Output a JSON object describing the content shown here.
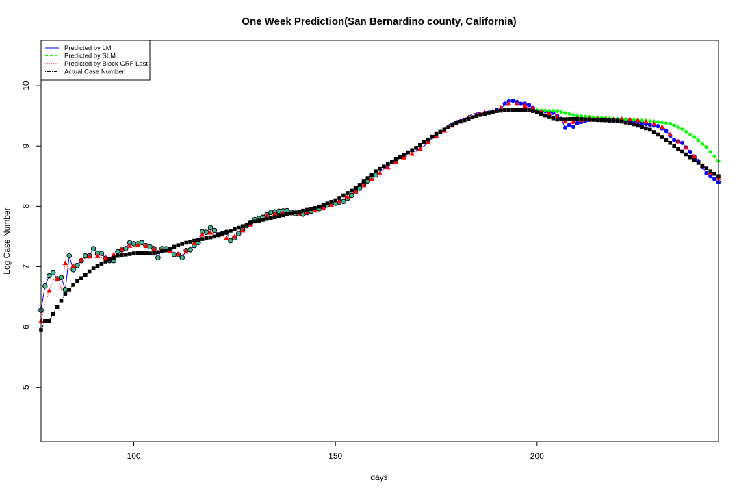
{
  "chart_data": {
    "type": "line",
    "title": "One Week Prediction(San Bernardino county, California)",
    "xlabel": "days",
    "ylabel": "Log Case Number",
    "xlim": [
      77,
      245
    ],
    "ylim": [
      4.1,
      10.75
    ],
    "xticks": [
      100,
      150,
      200
    ],
    "yticks": [
      5,
      6,
      7,
      8,
      9,
      10
    ],
    "grid": false,
    "legend_position": "top-left",
    "series": [
      {
        "name": "Predicted by LM",
        "color": "#0000ff",
        "line": "solid",
        "marker": "circle"
      },
      {
        "name": "Predicted by SLM",
        "color": "#00ff00",
        "line": "dashed",
        "marker": "diamond"
      },
      {
        "name": "Predicted by Block GRF Last",
        "color": "#ff0000",
        "line": "dotted",
        "marker": "triangle"
      },
      {
        "name": "Actual Case Number",
        "color": "#000000",
        "line": "dotdash",
        "marker": "square"
      }
    ],
    "actual_anchor_points": [
      [
        77,
        5.95
      ],
      [
        78,
        6.1
      ],
      [
        79,
        6.1
      ],
      [
        80,
        6.22
      ],
      [
        81,
        6.33
      ],
      [
        82,
        6.44
      ],
      [
        83,
        6.55
      ],
      [
        84,
        6.62
      ],
      [
        85,
        6.7
      ],
      [
        86,
        6.76
      ],
      [
        87,
        6.81
      ],
      [
        88,
        6.86
      ],
      [
        89,
        6.92
      ],
      [
        90,
        6.97
      ],
      [
        92,
        7.05
      ],
      [
        94,
        7.12
      ],
      [
        96,
        7.18
      ],
      [
        98,
        7.2
      ],
      [
        100,
        7.22
      ],
      [
        102,
        7.23
      ],
      [
        104,
        7.22
      ],
      [
        106,
        7.24
      ],
      [
        108,
        7.27
      ],
      [
        110,
        7.33
      ],
      [
        112,
        7.38
      ],
      [
        115,
        7.43
      ],
      [
        120,
        7.5
      ],
      [
        125,
        7.62
      ],
      [
        130,
        7.75
      ],
      [
        135,
        7.82
      ],
      [
        140,
        7.9
      ],
      [
        145,
        7.97
      ],
      [
        150,
        8.1
      ],
      [
        155,
        8.3
      ],
      [
        160,
        8.58
      ],
      [
        165,
        8.78
      ],
      [
        170,
        8.97
      ],
      [
        175,
        9.2
      ],
      [
        180,
        9.38
      ],
      [
        185,
        9.5
      ],
      [
        190,
        9.58
      ],
      [
        193,
        9.6
      ],
      [
        198,
        9.6
      ],
      [
        200,
        9.56
      ],
      [
        203,
        9.48
      ],
      [
        205,
        9.44
      ],
      [
        210,
        9.45
      ],
      [
        215,
        9.43
      ],
      [
        220,
        9.42
      ],
      [
        224,
        9.36
      ],
      [
        228,
        9.27
      ],
      [
        231,
        9.15
      ],
      [
        234,
        9.0
      ],
      [
        237,
        8.86
      ],
      [
        240,
        8.72
      ],
      [
        243,
        8.58
      ],
      [
        245,
        8.5
      ]
    ],
    "lm_anchor_points": [
      [
        77,
        6.28
      ],
      [
        78,
        6.68
      ],
      [
        79,
        6.85
      ],
      [
        80,
        6.9
      ],
      [
        81,
        6.8
      ],
      [
        82,
        6.82
      ],
      [
        83,
        6.62
      ],
      [
        84,
        7.18
      ],
      [
        85,
        6.95
      ],
      [
        86,
        7.02
      ],
      [
        87,
        7.1
      ],
      [
        88,
        7.18
      ],
      [
        89,
        7.18
      ],
      [
        90,
        7.3
      ],
      [
        91,
        7.22
      ],
      [
        92,
        7.22
      ],
      [
        93,
        7.14
      ],
      [
        94,
        7.1
      ],
      [
        95,
        7.1
      ],
      [
        96,
        7.25
      ],
      [
        97,
        7.28
      ],
      [
        98,
        7.3
      ],
      [
        99,
        7.4
      ],
      [
        100,
        7.38
      ],
      [
        101,
        7.38
      ],
      [
        102,
        7.4
      ],
      [
        103,
        7.35
      ],
      [
        104,
        7.33
      ],
      [
        105,
        7.3
      ],
      [
        106,
        7.15
      ],
      [
        107,
        7.3
      ],
      [
        108,
        7.3
      ],
      [
        109,
        7.28
      ],
      [
        110,
        7.2
      ],
      [
        111,
        7.2
      ],
      [
        112,
        7.15
      ],
      [
        113,
        7.27
      ],
      [
        114,
        7.28
      ],
      [
        115,
        7.35
      ],
      [
        116,
        7.4
      ],
      [
        117,
        7.58
      ],
      [
        118,
        7.57
      ],
      [
        119,
        7.65
      ],
      [
        120,
        7.6
      ],
      [
        121,
        7.53
      ],
      [
        122,
        7.55
      ],
      [
        123,
        7.57
      ],
      [
        124,
        7.43
      ],
      [
        125,
        7.48
      ],
      [
        126,
        7.55
      ],
      [
        128,
        7.68
      ],
      [
        130,
        7.78
      ],
      [
        132,
        7.82
      ],
      [
        134,
        7.9
      ],
      [
        136,
        7.92
      ],
      [
        138,
        7.93
      ],
      [
        140,
        7.88
      ],
      [
        142,
        7.87
      ],
      [
        144,
        7.92
      ],
      [
        146,
        7.96
      ],
      [
        148,
        8.02
      ],
      [
        150,
        8.05
      ],
      [
        152,
        8.08
      ],
      [
        154,
        8.18
      ],
      [
        156,
        8.3
      ],
      [
        158,
        8.42
      ],
      [
        160,
        8.52
      ],
      [
        162,
        8.62
      ],
      [
        164,
        8.72
      ],
      [
        166,
        8.8
      ],
      [
        168,
        8.87
      ],
      [
        170,
        8.92
      ],
      [
        172,
        9.0
      ],
      [
        174,
        9.13
      ],
      [
        176,
        9.22
      ],
      [
        178,
        9.35
      ],
      [
        180,
        9.42
      ],
      [
        182,
        9.45
      ],
      [
        184,
        9.53
      ],
      [
        186,
        9.56
      ],
      [
        188,
        9.58
      ],
      [
        190,
        9.6
      ],
      [
        191,
        9.6
      ],
      [
        192,
        9.7
      ],
      [
        193,
        9.74
      ],
      [
        194,
        9.75
      ],
      [
        195,
        9.73
      ],
      [
        196,
        9.7
      ],
      [
        197,
        9.7
      ],
      [
        198,
        9.68
      ],
      [
        200,
        9.58
      ],
      [
        202,
        9.58
      ],
      [
        204,
        9.55
      ],
      [
        206,
        9.45
      ],
      [
        207,
        9.3
      ],
      [
        208,
        9.35
      ],
      [
        209,
        9.32
      ],
      [
        210,
        9.38
      ],
      [
        212,
        9.42
      ],
      [
        214,
        9.45
      ],
      [
        216,
        9.45
      ],
      [
        218,
        9.42
      ],
      [
        220,
        9.42
      ],
      [
        222,
        9.43
      ],
      [
        224,
        9.42
      ],
      [
        226,
        9.38
      ],
      [
        228,
        9.35
      ],
      [
        230,
        9.33
      ],
      [
        232,
        9.25
      ],
      [
        234,
        9.1
      ],
      [
        236,
        9.05
      ],
      [
        238,
        8.9
      ],
      [
        240,
        8.75
      ],
      [
        242,
        8.55
      ],
      [
        243,
        8.5
      ],
      [
        244,
        8.45
      ],
      [
        245,
        8.4
      ]
    ],
    "slm_anchor_points": [
      [
        199,
        9.6
      ],
      [
        205,
        9.58
      ],
      [
        210,
        9.5
      ],
      [
        215,
        9.47
      ],
      [
        220,
        9.45
      ],
      [
        225,
        9.43
      ],
      [
        230,
        9.4
      ],
      [
        233,
        9.37
      ],
      [
        236,
        9.28
      ],
      [
        239,
        9.15
      ],
      [
        242,
        8.98
      ],
      [
        245,
        8.75
      ]
    ],
    "grf_anchor_points": [
      [
        77,
        6.1
      ],
      [
        78,
        6.38
      ],
      [
        79,
        6.6
      ],
      [
        80,
        6.78
      ],
      [
        81,
        6.8
      ],
      [
        82,
        6.63
      ],
      [
        83,
        7.06
      ],
      [
        84,
        6.95
      ],
      [
        86,
        7.08
      ],
      [
        88,
        7.14
      ],
      [
        90,
        7.2
      ],
      [
        92,
        7.15
      ],
      [
        94,
        7.15
      ],
      [
        96,
        7.25
      ],
      [
        98,
        7.33
      ],
      [
        100,
        7.36
      ],
      [
        102,
        7.36
      ],
      [
        104,
        7.33
      ],
      [
        106,
        7.25
      ],
      [
        108,
        7.3
      ],
      [
        110,
        7.22
      ],
      [
        112,
        7.2
      ],
      [
        114,
        7.3
      ],
      [
        116,
        7.48
      ],
      [
        118,
        7.58
      ],
      [
        120,
        7.55
      ],
      [
        122,
        7.5
      ],
      [
        124,
        7.45
      ],
      [
        126,
        7.55
      ],
      [
        128,
        7.65
      ],
      [
        130,
        7.75
      ],
      [
        134,
        7.87
      ],
      [
        138,
        7.9
      ],
      [
        142,
        7.88
      ],
      [
        146,
        7.95
      ],
      [
        150,
        8.04
      ],
      [
        154,
        8.2
      ],
      [
        158,
        8.4
      ],
      [
        162,
        8.6
      ],
      [
        166,
        8.78
      ],
      [
        170,
        8.9
      ],
      [
        174,
        9.12
      ],
      [
        178,
        9.3
      ],
      [
        182,
        9.45
      ],
      [
        186,
        9.55
      ],
      [
        190,
        9.58
      ],
      [
        192,
        9.68
      ],
      [
        194,
        9.72
      ],
      [
        196,
        9.68
      ],
      [
        198,
        9.66
      ],
      [
        200,
        9.58
      ],
      [
        202,
        9.56
      ],
      [
        204,
        9.52
      ],
      [
        206,
        9.45
      ],
      [
        208,
        9.38
      ],
      [
        210,
        9.42
      ],
      [
        214,
        9.46
      ],
      [
        218,
        9.44
      ],
      [
        222,
        9.45
      ],
      [
        226,
        9.42
      ],
      [
        230,
        9.35
      ],
      [
        232,
        9.28
      ],
      [
        234,
        9.1
      ],
      [
        236,
        9.05
      ],
      [
        238,
        8.9
      ],
      [
        240,
        8.75
      ],
      [
        242,
        8.6
      ],
      [
        244,
        8.52
      ],
      [
        245,
        8.47
      ]
    ]
  }
}
